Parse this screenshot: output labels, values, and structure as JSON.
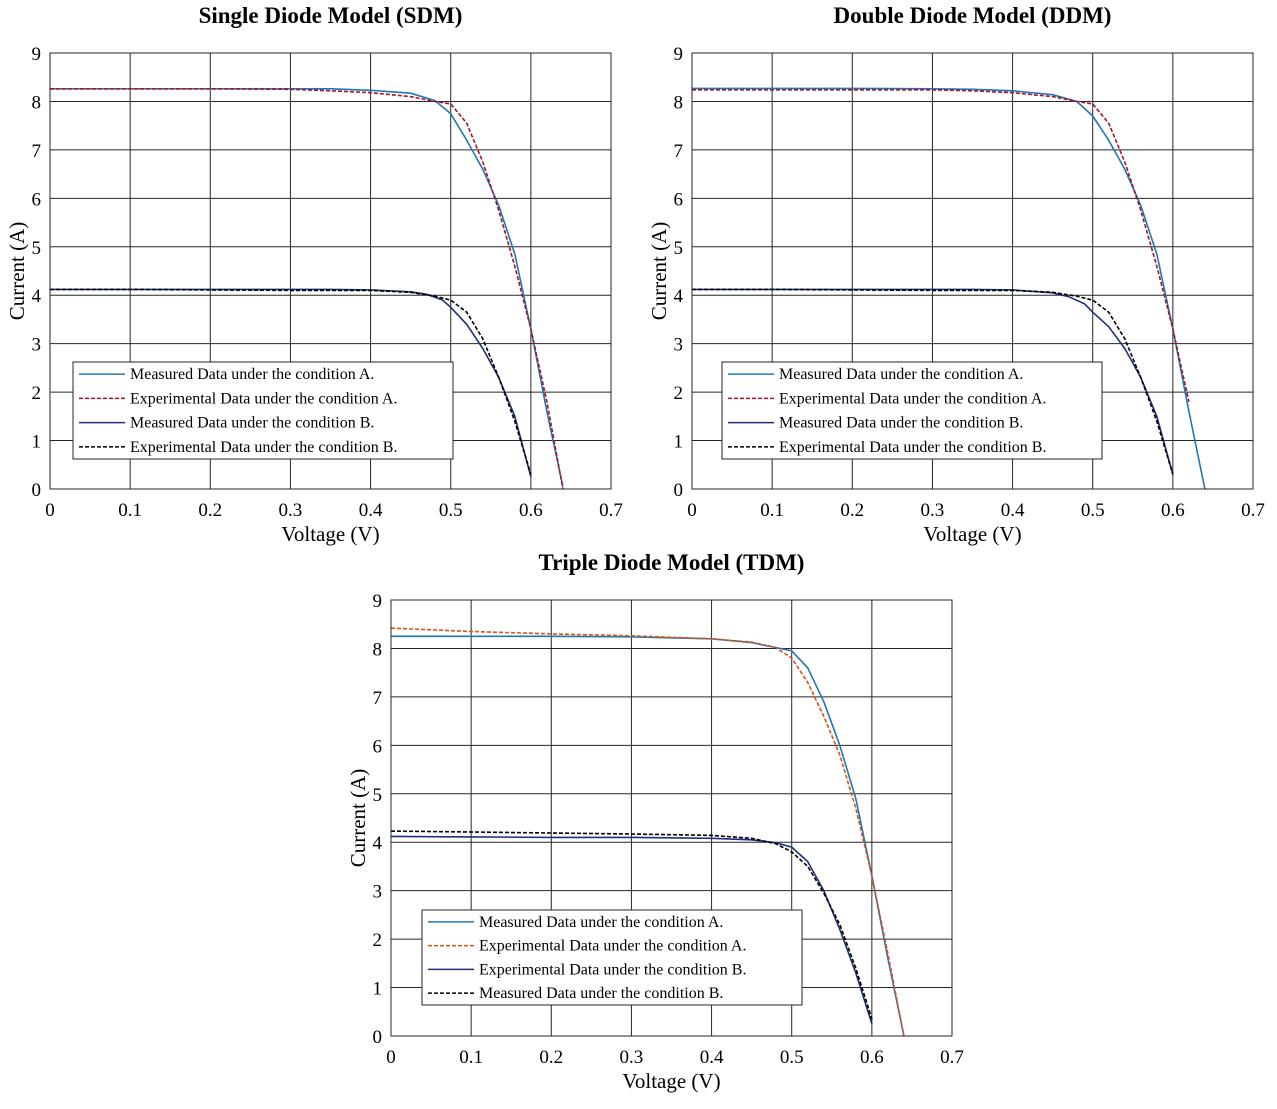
{
  "chart_data": [
    {
      "type": "line",
      "title": "Single Diode Model (SDM)",
      "xlabel": "Voltage (V)",
      "ylabel": "Current (A)",
      "xlim": [
        0,
        0.7
      ],
      "ylim": [
        0,
        9
      ],
      "xticks": [
        "0",
        "0.1",
        "0.2",
        "0.3",
        "0.4",
        "0.5",
        "0.6",
        "0.7"
      ],
      "yticks": [
        "0",
        "1",
        "2",
        "3",
        "4",
        "5",
        "6",
        "7",
        "8",
        "9"
      ],
      "grid": true,
      "legend_position": "bottom-left",
      "series": [
        {
          "name": "Measured Data under the condition A.",
          "color": "#1f77b4",
          "dash": "solid",
          "x": [
            0,
            0.1,
            0.2,
            0.3,
            0.35,
            0.4,
            0.45,
            0.48,
            0.5,
            0.52,
            0.54,
            0.56,
            0.58,
            0.6,
            0.62,
            0.64
          ],
          "y": [
            8.26,
            8.26,
            8.26,
            8.26,
            8.26,
            8.23,
            8.17,
            8.02,
            7.75,
            7.2,
            6.6,
            5.85,
            4.85,
            3.3,
            1.6,
            0.05
          ]
        },
        {
          "name": "Experimental Data under the condition A.",
          "color": "#a8122a",
          "dash": "dashed",
          "x": [
            0,
            0.1,
            0.2,
            0.3,
            0.35,
            0.4,
            0.45,
            0.48,
            0.5,
            0.52,
            0.54,
            0.56,
            0.58,
            0.6,
            0.62,
            0.64
          ],
          "y": [
            8.26,
            8.26,
            8.26,
            8.25,
            8.22,
            8.18,
            8.1,
            8.0,
            7.95,
            7.55,
            6.75,
            5.75,
            4.6,
            3.3,
            1.8,
            0.0
          ]
        },
        {
          "name": "Measured Data under the condition B.",
          "color": "#1f2f7a",
          "dash": "solid",
          "x": [
            0,
            0.1,
            0.2,
            0.3,
            0.35,
            0.4,
            0.45,
            0.47,
            0.49,
            0.5,
            0.52,
            0.54,
            0.56,
            0.58,
            0.6
          ],
          "y": [
            4.12,
            4.12,
            4.12,
            4.12,
            4.12,
            4.11,
            4.07,
            4.02,
            3.9,
            3.75,
            3.4,
            2.9,
            2.3,
            1.5,
            0.25
          ]
        },
        {
          "name": "Experimental Data under the condition B.",
          "color": "#000000",
          "dash": "dashed",
          "x": [
            0,
            0.1,
            0.2,
            0.3,
            0.35,
            0.4,
            0.45,
            0.48,
            0.5,
            0.52,
            0.54,
            0.56,
            0.58,
            0.6
          ],
          "y": [
            4.12,
            4.12,
            4.11,
            4.1,
            4.1,
            4.1,
            4.06,
            3.98,
            3.9,
            3.65,
            3.1,
            2.3,
            1.4,
            0.3
          ]
        }
      ]
    },
    {
      "type": "line",
      "title": "Double Diode Model (DDM)",
      "xlabel": "Voltage (V)",
      "ylabel": "Current (A)",
      "xlim": [
        0,
        0.7
      ],
      "ylim": [
        0,
        9
      ],
      "xticks": [
        "0",
        "0.1",
        "0.2",
        "0.3",
        "0.4",
        "0.5",
        "0.6",
        "0.7"
      ],
      "yticks": [
        "0",
        "1",
        "2",
        "3",
        "4",
        "5",
        "6",
        "7",
        "8",
        "9"
      ],
      "grid": true,
      "legend_position": "bottom-left",
      "series": [
        {
          "name": "Measured Data under the condition A.",
          "color": "#1f77b4",
          "dash": "solid",
          "x": [
            0,
            0.1,
            0.2,
            0.3,
            0.35,
            0.4,
            0.45,
            0.48,
            0.5,
            0.52,
            0.54,
            0.56,
            0.58,
            0.6,
            0.62,
            0.64
          ],
          "y": [
            8.27,
            8.27,
            8.27,
            8.26,
            8.25,
            8.22,
            8.14,
            8.0,
            7.7,
            7.2,
            6.6,
            5.85,
            4.85,
            3.3,
            1.6,
            0.0
          ]
        },
        {
          "name": "Experimental Data under the condition A.",
          "color": "#a8122a",
          "dash": "dashed",
          "x": [
            0,
            0.1,
            0.2,
            0.3,
            0.35,
            0.4,
            0.45,
            0.48,
            0.5,
            0.52,
            0.54,
            0.56,
            0.58,
            0.6,
            0.62
          ],
          "y": [
            8.24,
            8.24,
            8.24,
            8.24,
            8.22,
            8.18,
            8.1,
            8.0,
            7.95,
            7.55,
            6.75,
            5.75,
            4.6,
            3.3,
            1.8
          ]
        },
        {
          "name": "Measured Data under the condition B.",
          "color": "#1f2f7a",
          "dash": "solid",
          "x": [
            0,
            0.1,
            0.2,
            0.3,
            0.35,
            0.4,
            0.45,
            0.47,
            0.49,
            0.5,
            0.52,
            0.54,
            0.56,
            0.58,
            0.6
          ],
          "y": [
            4.12,
            4.12,
            4.12,
            4.12,
            4.12,
            4.11,
            4.05,
            3.97,
            3.82,
            3.65,
            3.35,
            2.9,
            2.3,
            1.5,
            0.3
          ]
        },
        {
          "name": "Experimental Data under the condition B.",
          "color": "#000000",
          "dash": "dashed",
          "x": [
            0,
            0.1,
            0.2,
            0.3,
            0.35,
            0.4,
            0.45,
            0.48,
            0.5,
            0.52,
            0.54,
            0.56,
            0.58,
            0.6
          ],
          "y": [
            4.12,
            4.12,
            4.11,
            4.1,
            4.1,
            4.1,
            4.06,
            3.98,
            3.9,
            3.65,
            3.1,
            2.3,
            1.4,
            0.3
          ]
        }
      ]
    },
    {
      "type": "line",
      "title": "Triple Diode Model (TDM)",
      "xlabel": "Voltage (V)",
      "ylabel": "Current (A)",
      "xlim": [
        0,
        0.7
      ],
      "ylim": [
        0,
        9
      ],
      "xticks": [
        "0",
        "0.1",
        "0.2",
        "0.3",
        "0.4",
        "0.5",
        "0.6",
        "0.7"
      ],
      "yticks": [
        "0",
        "1",
        "2",
        "3",
        "4",
        "5",
        "6",
        "7",
        "8",
        "9"
      ],
      "grid": true,
      "legend_position": "bottom-left",
      "series": [
        {
          "name": "Measured Data under the condition A.",
          "color": "#1f77b4",
          "dash": "solid",
          "x": [
            0,
            0.1,
            0.2,
            0.3,
            0.4,
            0.45,
            0.48,
            0.5,
            0.52,
            0.54,
            0.56,
            0.58,
            0.6,
            0.62,
            0.64
          ],
          "y": [
            8.25,
            8.25,
            8.25,
            8.24,
            8.2,
            8.12,
            8.02,
            7.95,
            7.6,
            6.9,
            6.0,
            4.9,
            3.3,
            1.6,
            0.0
          ]
        },
        {
          "name": "Experimental Data under the condition A.",
          "color": "#d95319",
          "dash": "dashed",
          "x": [
            0,
            0.1,
            0.2,
            0.3,
            0.4,
            0.45,
            0.48,
            0.5,
            0.52,
            0.54,
            0.56,
            0.58,
            0.6,
            0.62,
            0.64
          ],
          "y": [
            8.42,
            8.35,
            8.3,
            8.26,
            8.2,
            8.13,
            8.02,
            7.8,
            7.3,
            6.6,
            5.8,
            4.7,
            3.3,
            1.7,
            0.0
          ]
        },
        {
          "name": "Experimental Data under the condition B.",
          "color": "#1f2f7a",
          "dash": "solid",
          "x": [
            0,
            0.1,
            0.2,
            0.3,
            0.4,
            0.45,
            0.48,
            0.5,
            0.52,
            0.54,
            0.56,
            0.58,
            0.6
          ],
          "y": [
            4.12,
            4.11,
            4.1,
            4.1,
            4.08,
            4.05,
            3.99,
            3.9,
            3.6,
            3.0,
            2.2,
            1.3,
            0.25
          ]
        },
        {
          "name": "Measured Data under the condition B.",
          "color": "#000000",
          "dash": "dashed",
          "x": [
            0,
            0.1,
            0.2,
            0.3,
            0.4,
            0.45,
            0.48,
            0.5,
            0.52,
            0.54,
            0.56,
            0.58,
            0.6
          ],
          "y": [
            4.23,
            4.21,
            4.19,
            4.17,
            4.14,
            4.08,
            3.97,
            3.8,
            3.5,
            2.95,
            2.3,
            1.4,
            0.35
          ]
        }
      ]
    }
  ]
}
